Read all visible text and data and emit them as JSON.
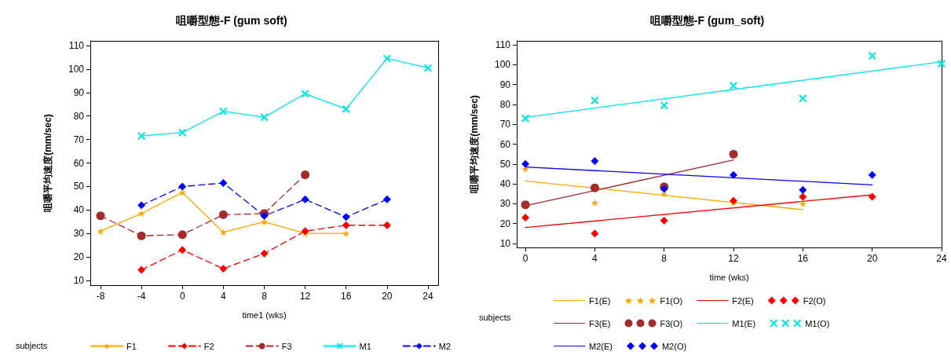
{
  "chart_data": [
    {
      "type": "line",
      "title": "咀嚼型態-F (gum soft)",
      "xlabel": "time1 (wks)",
      "ylabel": "咀嚼平均速度(mm/sec)",
      "legend_title": "subjects",
      "legend": "bottom",
      "grid": false,
      "xlim": [
        -9,
        25
      ],
      "xticks": [
        -8,
        -4,
        0,
        4,
        8,
        12,
        16,
        20,
        24
      ],
      "ylim": [
        8,
        112
      ],
      "yticks": [
        10,
        20,
        30,
        40,
        50,
        60,
        70,
        80,
        90,
        100,
        110
      ],
      "series": [
        {
          "name": "F1",
          "color": "#ffa500",
          "marker": "star",
          "line_style": "solid",
          "x": [
            -8,
            -4,
            0,
            4,
            8,
            12,
            16
          ],
          "values": [
            31,
            38.5,
            47.5,
            30.5,
            35,
            30,
            30
          ]
        },
        {
          "name": "F2",
          "color": "#ff0000",
          "marker": "diamond",
          "line_style": "dashed",
          "x": [
            -4,
            0,
            4,
            8,
            12,
            16,
            20
          ],
          "values": [
            14.5,
            23,
            15,
            21.5,
            31,
            33.5,
            33.5
          ]
        },
        {
          "name": "F3",
          "color": "#a52a2a",
          "marker": "circle",
          "line_style": "dashed",
          "x": [
            -8,
            -4,
            0,
            4,
            8,
            12
          ],
          "values": [
            37.5,
            29,
            29.5,
            38,
            38.5,
            55
          ]
        },
        {
          "name": "M1",
          "color": "#00e5e5",
          "marker": "cross",
          "line_style": "solid",
          "x": [
            -4,
            0,
            4,
            8,
            12,
            16,
            20,
            24
          ],
          "values": [
            71.5,
            73,
            82,
            79.5,
            89.5,
            83,
            104.5,
            100.5
          ]
        },
        {
          "name": "M2",
          "color": "#0000ff",
          "marker": "diamond",
          "line_style": "dashed",
          "x": [
            -4,
            0,
            4,
            8,
            12,
            16,
            20
          ],
          "values": [
            42,
            50,
            51.5,
            37.5,
            44.5,
            37,
            44.5
          ]
        }
      ]
    },
    {
      "type": "scatter",
      "title": "咀嚼型態-F (gum_soft)",
      "xlabel": "time (wks)",
      "ylabel": "咀嚼平均速度(mm/sec)",
      "legend_title": "subjects",
      "legend": "bottom",
      "grid": false,
      "xlim": [
        -0.5,
        24
      ],
      "xticks": [
        0,
        4,
        8,
        12,
        16,
        20,
        24
      ],
      "ylim": [
        8,
        112
      ],
      "yticks": [
        10,
        20,
        30,
        40,
        50,
        60,
        70,
        80,
        90,
        100,
        110
      ],
      "series": [
        {
          "name": "F1(E)",
          "type": "line",
          "color": "#ffa500",
          "marker": "none",
          "line_style": "solid",
          "x": [
            0,
            16
          ],
          "values": [
            41.5,
            27
          ]
        },
        {
          "name": "F1(O)",
          "color": "#ffa500",
          "marker": "star",
          "x": [
            0,
            4,
            8,
            12,
            16
          ],
          "values": [
            47.5,
            30.5,
            35,
            30.5,
            30
          ]
        },
        {
          "name": "F2(E)",
          "type": "line",
          "color": "#ff0000",
          "marker": "none",
          "line_style": "solid",
          "x": [
            0,
            20
          ],
          "values": [
            18,
            34.5
          ]
        },
        {
          "name": "F2(O)",
          "color": "#ff0000",
          "marker": "diamond",
          "x": [
            0,
            4,
            8,
            12,
            16,
            20
          ],
          "values": [
            23,
            15,
            21.5,
            31.5,
            33.5,
            33.5
          ]
        },
        {
          "name": "F3(E)",
          "type": "line",
          "color": "#a52a2a",
          "marker": "none",
          "line_style": "solid",
          "x": [
            0,
            12
          ],
          "values": [
            29,
            52
          ]
        },
        {
          "name": "F3(O)",
          "color": "#a52a2a",
          "marker": "circle",
          "x": [
            0,
            4,
            8,
            12
          ],
          "values": [
            29.5,
            38,
            38.5,
            55
          ]
        },
        {
          "name": "M1(E)",
          "type": "line",
          "color": "#00e5e5",
          "marker": "none",
          "line_style": "solid",
          "x": [
            0,
            24
          ],
          "values": [
            73.5,
            101.5
          ]
        },
        {
          "name": "M1(O)",
          "color": "#00e5e5",
          "marker": "cross",
          "x": [
            0,
            4,
            8,
            12,
            16,
            20,
            24
          ],
          "values": [
            73,
            82,
            79.5,
            89.5,
            83,
            104.5,
            100.5
          ]
        },
        {
          "name": "M2(E)",
          "type": "line",
          "color": "#0000ff",
          "marker": "none",
          "line_style": "solid",
          "x": [
            0,
            20
          ],
          "values": [
            48.5,
            39.5
          ]
        },
        {
          "name": "M2(O)",
          "color": "#0000ff",
          "marker": "diamond",
          "x": [
            0,
            4,
            8,
            12,
            16,
            20
          ],
          "values": [
            50,
            51.5,
            37.5,
            44.5,
            37,
            44.5
          ]
        }
      ]
    }
  ]
}
